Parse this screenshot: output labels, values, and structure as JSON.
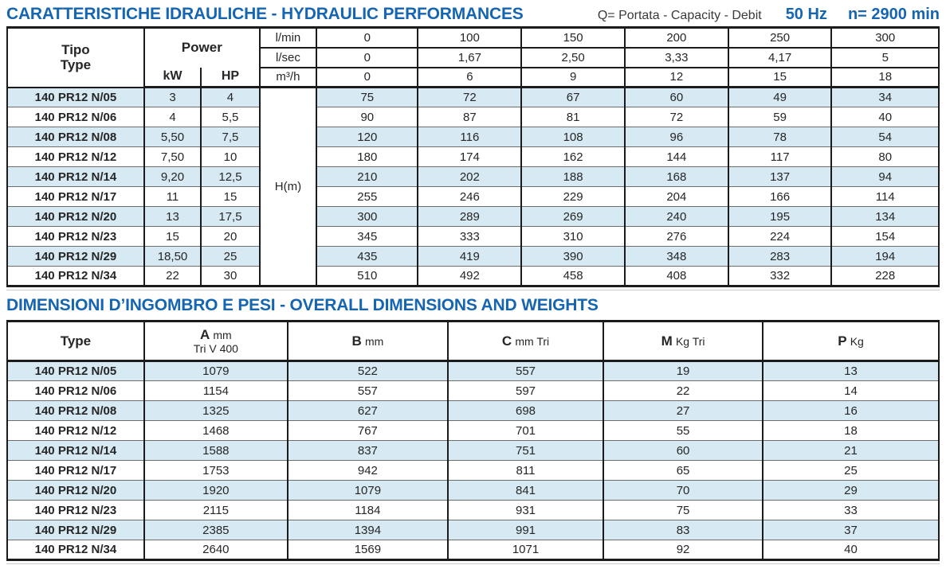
{
  "header": {
    "title": "CARATTERISTICHE IDRAULICHE - HYDRAULIC PERFORMANCES",
    "capacity_note": "Q= Portata - Capacity - Debit",
    "frequency": "50 Hz",
    "speed": "n= 2900 min"
  },
  "hydraulic_table": {
    "col_tipo": "Tipo",
    "col_type": "Type",
    "col_power": "Power",
    "col_kw": "kW",
    "col_hp": "HP",
    "head_unit": "H(m)",
    "flow_header_rows": [
      {
        "unit": "l/min",
        "values": [
          "0",
          "100",
          "150",
          "200",
          "250",
          "300"
        ]
      },
      {
        "unit": "l/sec",
        "values": [
          "0",
          "1,67",
          "2,50",
          "3,33",
          "4,17",
          "5"
        ]
      },
      {
        "unit": "m³/h",
        "values": [
          "0",
          "6",
          "9",
          "12",
          "15",
          "18"
        ]
      }
    ],
    "rows": [
      {
        "type": "140 PR12 N/05",
        "kw": "3",
        "hp": "4",
        "head": [
          "75",
          "72",
          "67",
          "60",
          "49",
          "34"
        ]
      },
      {
        "type": "140 PR12 N/06",
        "kw": "4",
        "hp": "5,5",
        "head": [
          "90",
          "87",
          "81",
          "72",
          "59",
          "40"
        ]
      },
      {
        "type": "140 PR12 N/08",
        "kw": "5,50",
        "hp": "7,5",
        "head": [
          "120",
          "116",
          "108",
          "96",
          "78",
          "54"
        ]
      },
      {
        "type": "140 PR12 N/12",
        "kw": "7,50",
        "hp": "10",
        "head": [
          "180",
          "174",
          "162",
          "144",
          "117",
          "80"
        ]
      },
      {
        "type": "140 PR12 N/14",
        "kw": "9,20",
        "hp": "12,5",
        "head": [
          "210",
          "202",
          "188",
          "168",
          "137",
          "94"
        ]
      },
      {
        "type": "140 PR12 N/17",
        "kw": "11",
        "hp": "15",
        "head": [
          "255",
          "246",
          "229",
          "204",
          "166",
          "114"
        ]
      },
      {
        "type": "140 PR12 N/20",
        "kw": "13",
        "hp": "17,5",
        "head": [
          "300",
          "289",
          "269",
          "240",
          "195",
          "134"
        ]
      },
      {
        "type": "140 PR12 N/23",
        "kw": "15",
        "hp": "20",
        "head": [
          "345",
          "333",
          "310",
          "276",
          "224",
          "154"
        ]
      },
      {
        "type": "140 PR12 N/29",
        "kw": "18,50",
        "hp": "25",
        "head": [
          "435",
          "419",
          "390",
          "348",
          "283",
          "194"
        ]
      },
      {
        "type": "140 PR12 N/34",
        "kw": "22",
        "hp": "30",
        "head": [
          "510",
          "492",
          "458",
          "408",
          "332",
          "228"
        ]
      }
    ]
  },
  "dimensions_section": {
    "title": "DIMENSIONI D’INGOMBRO E PESI - OVERALL DIMENSIONS AND WEIGHTS",
    "table": {
      "col_type": "Type",
      "columns": [
        {
          "letter": "A",
          "unit": "mm",
          "sub": "Tri V 400"
        },
        {
          "letter": "B",
          "unit": "mm",
          "sub": ""
        },
        {
          "letter": "C",
          "unit": "mm Tri",
          "sub": ""
        },
        {
          "letter": "M",
          "unit": "Kg Tri",
          "sub": ""
        },
        {
          "letter": "P",
          "unit": "Kg",
          "sub": ""
        }
      ],
      "rows": [
        {
          "type": "140 PR12 N/05",
          "values": [
            "1079",
            "522",
            "557",
            "19",
            "13"
          ]
        },
        {
          "type": "140 PR12 N/06",
          "values": [
            "1154",
            "557",
            "597",
            "22",
            "14"
          ]
        },
        {
          "type": "140 PR12 N/08",
          "values": [
            "1325",
            "627",
            "698",
            "27",
            "16"
          ]
        },
        {
          "type": "140 PR12 N/12",
          "values": [
            "1468",
            "767",
            "701",
            "55",
            "18"
          ]
        },
        {
          "type": "140 PR12 N/14",
          "values": [
            "1588",
            "837",
            "751",
            "60",
            "21"
          ]
        },
        {
          "type": "140 PR12 N/17",
          "values": [
            "1753",
            "942",
            "811",
            "65",
            "25"
          ]
        },
        {
          "type": "140 PR12 N/20",
          "values": [
            "1920",
            "1079",
            "841",
            "70",
            "29"
          ]
        },
        {
          "type": "140 PR12 N/23",
          "values": [
            "2115",
            "1184",
            "931",
            "75",
            "33"
          ]
        },
        {
          "type": "140 PR12 N/29",
          "values": [
            "2385",
            "1394",
            "991",
            "83",
            "37"
          ]
        },
        {
          "type": "140 PR12 N/34",
          "values": [
            "2640",
            "1569",
            "1071",
            "92",
            "40"
          ]
        }
      ]
    }
  },
  "colors": {
    "accent_blue": "#1565b0",
    "row_highlight": "#d7e9f2",
    "border_dark": "#1b1b1b"
  }
}
